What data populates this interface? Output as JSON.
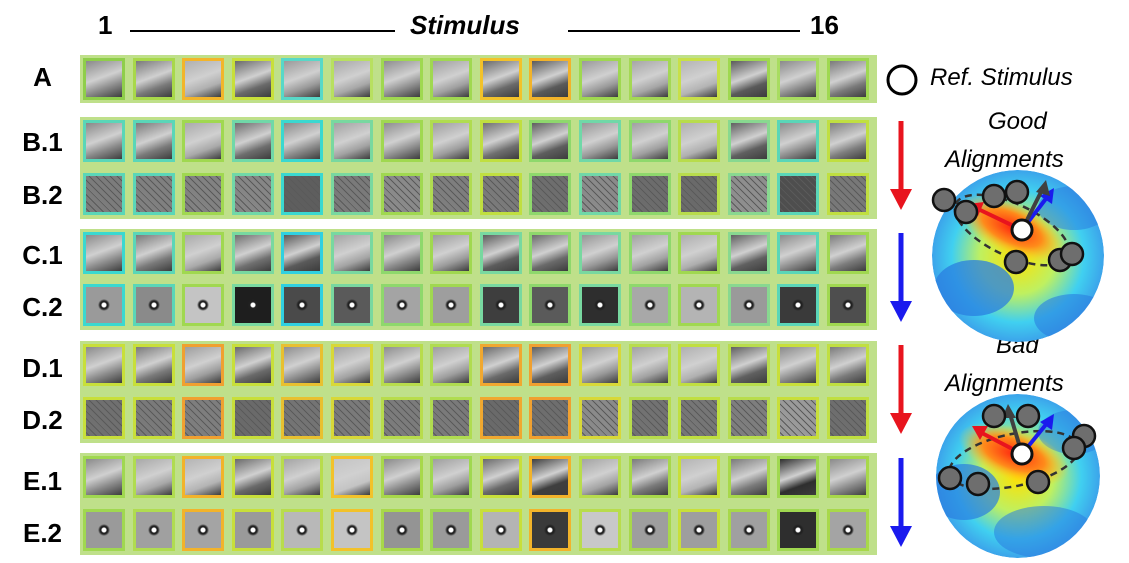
{
  "header": {
    "left_index": "1",
    "title": "Stimulus",
    "right_index": "16"
  },
  "legend": {
    "ref_label": "Ref. Stimulus"
  },
  "rows": [
    {
      "id": "A",
      "label": "A"
    },
    {
      "id": "B.1",
      "label": "B.1"
    },
    {
      "id": "B.2",
      "label": "B.2"
    },
    {
      "id": "C.1",
      "label": "C.1"
    },
    {
      "id": "C.2",
      "label": "C.2"
    },
    {
      "id": "D.1",
      "label": "D.1"
    },
    {
      "id": "D.2",
      "label": "D.2"
    },
    {
      "id": "E.1",
      "label": "E.1"
    },
    {
      "id": "E.2",
      "label": "E.2"
    }
  ],
  "border_colors": {
    "A": [
      "#8fce4a",
      "#a8d84a",
      "#f2b52a",
      "#c8df3a",
      "#58d8c8",
      "#b8e060",
      "#9fd850",
      "#a0d850",
      "#f2c22a",
      "#f2b32a",
      "#9fd850",
      "#a4d854",
      "#c8e048",
      "#9fd850",
      "#a8dc60",
      "#9fd850"
    ],
    "B": [
      "#5ad6b8",
      "#5ad6b8",
      "#a0d850",
      "#70d8a8",
      "#3ad8d0",
      "#78d8a0",
      "#a0d850",
      "#b0dc50",
      "#c0df40",
      "#8ed86c",
      "#70d8a8",
      "#8ed86c",
      "#b8dc4c",
      "#88d890",
      "#5ad6b8",
      "#c0df40"
    ],
    "C": [
      "#3ad8d0",
      "#5ad6b8",
      "#a0d850",
      "#78d8a0",
      "#30d0e0",
      "#78d8a0",
      "#8ed86c",
      "#a0d850",
      "#78d8a0",
      "#8ed86c",
      "#78d8a0",
      "#8ed86c",
      "#a0d850",
      "#88d890",
      "#5ad6b8",
      "#a0d850"
    ],
    "D": [
      "#c8df3a",
      "#c8df3a",
      "#f0a030",
      "#c8df3a",
      "#e8c030",
      "#d8d838",
      "#b8dc4c",
      "#b0dc50",
      "#f0a830",
      "#f0a030",
      "#d8d838",
      "#b8dc4c",
      "#c0df40",
      "#b8dc4c",
      "#c8df3a",
      "#c0df40"
    ],
    "E": [
      "#a0d850",
      "#b0dc50",
      "#f2b32a",
      "#c8df3a",
      "#b8dc4c",
      "#f2c22a",
      "#a8d84a",
      "#a0d850",
      "#c8df3a",
      "#f2b32a",
      "#b8dc4c",
      "#a8d84a",
      "#c8df3a",
      "#a8d84a",
      "#a0d850",
      "#a8d84a"
    ]
  },
  "cell_shades": {
    "A": [
      "#8a8a8a",
      "#7a7a7a",
      "#b0b0b0",
      "#6a6a6a",
      "#9a9a9a",
      "#a8a8a8",
      "#8e8e8e",
      "#a0a0a0",
      "#6a6a6a",
      "#5a5a5a",
      "#9a9a9a",
      "#a6a6a6",
      "#b4b4b4",
      "#5a5a5a",
      "#8a8a8a",
      "#7a7a7a"
    ],
    "B1": [
      "#888888",
      "#7a7a7a",
      "#aaaaaa",
      "#6e6e6e",
      "#8a8a8a",
      "#a2a2a2",
      "#8e8e8e",
      "#9e9e9e",
      "#707070",
      "#5e5e5e",
      "#989898",
      "#a0a0a0",
      "#b0b0b0",
      "#606060",
      "#8c8c8c",
      "#7e7e7e"
    ],
    "B2": [
      "#7c7c7c",
      "#808080",
      "#828282",
      "#868686",
      "#5e5e5e",
      "#7a7a7a",
      "#8a8a8a",
      "#7e7e7e",
      "#7a7a7a",
      "#6e6e6e",
      "#8a8a8a",
      "#6c6c6c",
      "#6a6a6a",
      "#8e8e8e",
      "#4e4e4e",
      "#787878"
    ],
    "C1": [
      "#8a8a8a",
      "#7a7a7a",
      "#aaaaaa",
      "#707070",
      "#5a5a5a",
      "#a4a4a4",
      "#8a8a8a",
      "#9c9c9c",
      "#5c5c5c",
      "#6a6a6a",
      "#969696",
      "#a2a2a2",
      "#aeaeae",
      "#606060",
      "#8c8c8c",
      "#7c7c7c"
    ],
    "C2": [
      "#9a9a9a",
      "#8a8a8a",
      "#c4c4c4",
      "#1e1e1e",
      "#4a4a4a",
      "#5a5a5a",
      "#a4a4a4",
      "#9e9e9e",
      "#3e3e3e",
      "#5a5a5a",
      "#2e2e2e",
      "#a8a8a8",
      "#b4b4b4",
      "#9a9a9a",
      "#3a3a3a",
      "#4e4e4e"
    ],
    "D1": [
      "#8a8a8a",
      "#7a7a7a",
      "#9e9e9e",
      "#6a6a6a",
      "#8e8e8e",
      "#a2a2a2",
      "#8e8e8e",
      "#9e9e9e",
      "#6a6a6a",
      "#5e5e5e",
      "#989898",
      "#a2a2a2",
      "#b0b0b0",
      "#606060",
      "#8a8a8a",
      "#7a7a7a"
    ],
    "D2": [
      "#707070",
      "#7a7a7a",
      "#7e7e7e",
      "#6a6a6a",
      "#747474",
      "#7a7a7a",
      "#7c7c7c",
      "#7a7a7a",
      "#6a6a6a",
      "#6e6e6e",
      "#8a8a8a",
      "#727272",
      "#767676",
      "#7e7e7e",
      "#9a9a9a",
      "#6e6e6e"
    ],
    "E1": [
      "#8a8a8a",
      "#a8a8a8",
      "#b4b4b4",
      "#6a6a6a",
      "#a4a4a4",
      "#c4c4c4",
      "#8a8a8a",
      "#9e9e9e",
      "#6a6a6a",
      "#3e3e3e",
      "#a4a4a4",
      "#7a7a7a",
      "#b4b4b4",
      "#7a7a7a",
      "#2e2e2e",
      "#8a8a8a"
    ],
    "E2": [
      "#9a9a9a",
      "#a0a0a0",
      "#a4a4a4",
      "#9a9a9a",
      "#b8b8b8",
      "#c4c4c4",
      "#949494",
      "#9a9a9a",
      "#b4b4b4",
      "#3a3a3a",
      "#c8c8c8",
      "#9e9e9e",
      "#9e9e9e",
      "#a0a0a0",
      "#2e2e2e",
      "#a4a4a4"
    ]
  },
  "side_arrows": [
    {
      "group": "B",
      "color": "#e8141e"
    },
    {
      "group": "C",
      "color": "#1a1aee"
    },
    {
      "group": "D",
      "color": "#e8141e"
    },
    {
      "group": "E",
      "color": "#1a1aee"
    }
  ],
  "panels": {
    "good": {
      "line1": "Good",
      "line2": "Alignments"
    },
    "bad": {
      "line1": "Bad",
      "line2": "Alignments"
    }
  },
  "colors": {
    "red_arrow": "#e8141e",
    "blue_arrow": "#1a1aee",
    "dark_arrow": "#404040",
    "marker": "#6e6e6e"
  }
}
